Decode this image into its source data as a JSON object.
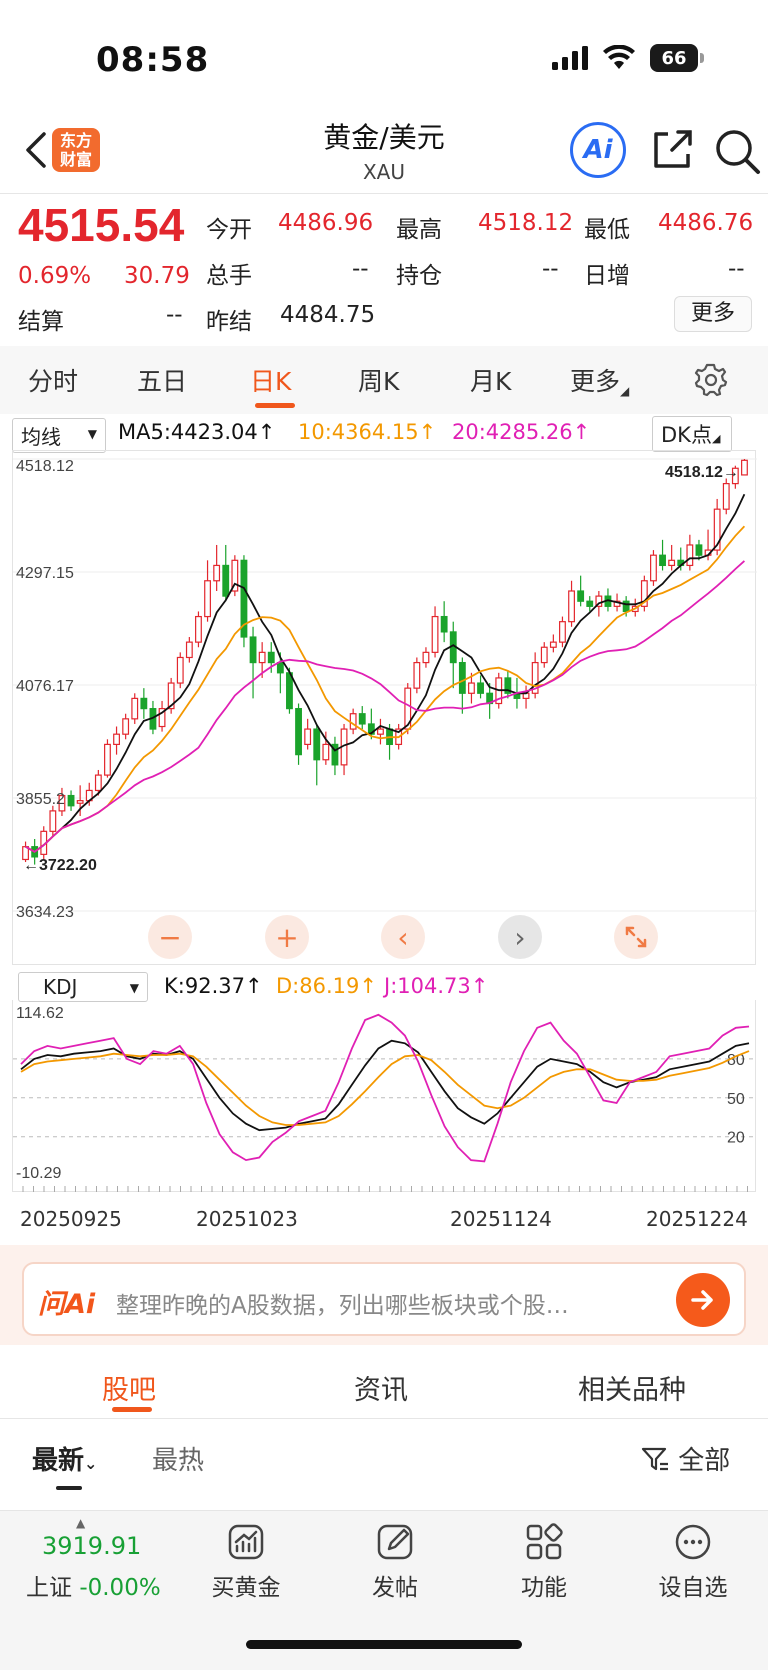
{
  "status": {
    "time": "08:58",
    "battery": "66"
  },
  "header": {
    "logo_line1": "东方",
    "logo_line2": "财富",
    "title": "黄金/美元",
    "subtitle": "XAU",
    "ai_label": "Ai"
  },
  "quote": {
    "price": "4515.54",
    "change_pct": "0.69%",
    "change": "30.79",
    "open_label": "今开",
    "open": "4486.96",
    "high_label": "最高",
    "high": "4518.12",
    "low_label": "最低",
    "low": "4486.76",
    "volume_label": "总手",
    "volume": "--",
    "position_label": "持仓",
    "position": "--",
    "daily_inc_label": "日增",
    "daily_inc": "--",
    "settle_label": "结算",
    "settle": "--",
    "prev_settle_label": "昨结",
    "prev_settle": "4484.75",
    "more_label": "更多"
  },
  "tabs": [
    "分时",
    "五日",
    "日K",
    "周K",
    "月K",
    "更多"
  ],
  "indicators": {
    "ma_select": "均线",
    "ma5": "MA5:4423.04↑",
    "ma10": "10:4364.15↑",
    "ma20": "20:4285.26↑",
    "dk_label": "DK点",
    "kdj_select": "KDJ",
    "k": "K:92.37↑",
    "d": "D:86.19↑",
    "j": "J:104.73↑"
  },
  "chart_data": [
    {
      "type": "candlestick",
      "title": "",
      "ylim": [
        3634.23,
        4518.12
      ],
      "y_ticks": [
        "4518.12",
        "4297.15",
        "4076.17",
        "3855.2",
        "3634.23"
      ],
      "max_label": "4518.12",
      "min_label": "3722.20",
      "x_ticks": [
        "20250925",
        "20251023",
        "20251124",
        "20251224"
      ],
      "series": [
        {
          "name": "MA5",
          "color": "#111111"
        },
        {
          "name": "10",
          "color": "#f39800"
        },
        {
          "name": "20",
          "color": "#e020b4"
        }
      ],
      "candles": [
        [
          3735,
          3760,
          3730,
          3770
        ],
        [
          3760,
          3740,
          3725,
          3775
        ],
        [
          3745,
          3790,
          3735,
          3800
        ],
        [
          3790,
          3830,
          3780,
          3840
        ],
        [
          3830,
          3860,
          3820,
          3875
        ],
        [
          3860,
          3840,
          3830,
          3870
        ],
        [
          3845,
          3850,
          3820,
          3880
        ],
        [
          3850,
          3870,
          3840,
          3885
        ],
        [
          3870,
          3900,
          3860,
          3910
        ],
        [
          3900,
          3960,
          3895,
          3970
        ],
        [
          3960,
          3980,
          3940,
          3995
        ],
        [
          3980,
          4010,
          3970,
          4020
        ],
        [
          4010,
          4050,
          4000,
          4060
        ],
        [
          4050,
          4030,
          4010,
          4070
        ],
        [
          4030,
          3990,
          3980,
          4045
        ],
        [
          3995,
          4030,
          3985,
          4045
        ],
        [
          4030,
          4080,
          4020,
          4090
        ],
        [
          4080,
          4130,
          4070,
          4140
        ],
        [
          4130,
          4160,
          4120,
          4170
        ],
        [
          4160,
          4210,
          4150,
          4220
        ],
        [
          4210,
          4280,
          4200,
          4320
        ],
        [
          4280,
          4310,
          4260,
          4350
        ],
        [
          4310,
          4250,
          4240,
          4350
        ],
        [
          4260,
          4320,
          4250,
          4330
        ],
        [
          4320,
          4170,
          4150,
          4330
        ],
        [
          4170,
          4120,
          4050,
          4190
        ],
        [
          4120,
          4140,
          4090,
          4160
        ],
        [
          4140,
          4120,
          4100,
          4160
        ],
        [
          4120,
          4100,
          4060,
          4140
        ],
        [
          4100,
          4030,
          4020,
          4110
        ],
        [
          4030,
          3940,
          3920,
          4040
        ],
        [
          3960,
          3990,
          3950,
          4010
        ],
        [
          3990,
          3930,
          3880,
          4000
        ],
        [
          3930,
          3960,
          3920,
          3985
        ],
        [
          3960,
          3920,
          3900,
          3975
        ],
        [
          3920,
          3990,
          3900,
          4000
        ],
        [
          3990,
          4020,
          3980,
          4030
        ],
        [
          4020,
          4000,
          3990,
          4035
        ],
        [
          4000,
          3980,
          3970,
          4030
        ],
        [
          3980,
          3990,
          3960,
          4010
        ],
        [
          3990,
          3960,
          3930,
          4000
        ],
        [
          3960,
          3990,
          3950,
          4000
        ],
        [
          3990,
          4070,
          3980,
          4080
        ],
        [
          4070,
          4120,
          4060,
          4130
        ],
        [
          4120,
          4140,
          4110,
          4150
        ],
        [
          4140,
          4210,
          4130,
          4230
        ],
        [
          4210,
          4180,
          4160,
          4240
        ],
        [
          4180,
          4120,
          4070,
          4200
        ],
        [
          4120,
          4060,
          4020,
          4130
        ],
        [
          4060,
          4080,
          4040,
          4100
        ],
        [
          4080,
          4060,
          4050,
          4095
        ],
        [
          4060,
          4040,
          4010,
          4080
        ],
        [
          4040,
          4090,
          4030,
          4100
        ],
        [
          4090,
          4060,
          4050,
          4105
        ],
        [
          4060,
          4050,
          4030,
          4090
        ],
        [
          4050,
          4060,
          4030,
          4075
        ],
        [
          4060,
          4120,
          4050,
          4140
        ],
        [
          4120,
          4150,
          4110,
          4160
        ],
        [
          4150,
          4160,
          4140,
          4175
        ],
        [
          4160,
          4200,
          4150,
          4210
        ],
        [
          4200,
          4260,
          4190,
          4280
        ],
        [
          4260,
          4240,
          4230,
          4290
        ],
        [
          4240,
          4230,
          4220,
          4250
        ],
        [
          4230,
          4250,
          4210,
          4260
        ],
        [
          4250,
          4230,
          4220,
          4265
        ],
        [
          4230,
          4240,
          4220,
          4255
        ],
        [
          4240,
          4220,
          4210,
          4250
        ],
        [
          4220,
          4230,
          4210,
          4245
        ],
        [
          4230,
          4280,
          4220,
          4290
        ],
        [
          4280,
          4330,
          4270,
          4340
        ],
        [
          4330,
          4310,
          4300,
          4360
        ],
        [
          4310,
          4320,
          4300,
          4350
        ],
        [
          4320,
          4310,
          4300,
          4345
        ],
        [
          4310,
          4350,
          4300,
          4370
        ],
        [
          4350,
          4330,
          4320,
          4360
        ],
        [
          4330,
          4340,
          4320,
          4380
        ],
        [
          4340,
          4420,
          4330,
          4440
        ],
        [
          4420,
          4470,
          4410,
          4480
        ],
        [
          4470,
          4500,
          4460,
          4505
        ],
        [
          4486.96,
          4515.54,
          4486.76,
          4518.12
        ]
      ]
    },
    {
      "type": "line",
      "title": "KDJ",
      "ylim": [
        -10.29,
        114.62
      ],
      "y_ticks": [
        "114.62",
        "-10.29"
      ],
      "ref_lines": [
        80,
        50,
        20
      ],
      "series": [
        {
          "name": "K",
          "color": "#111111",
          "values": [
            72,
            80,
            83,
            82,
            84,
            85,
            86,
            88,
            82,
            80,
            84,
            83,
            86,
            80,
            65,
            50,
            38,
            30,
            25,
            26,
            27,
            30,
            32,
            34,
            45,
            60,
            75,
            88,
            94,
            92,
            85,
            70,
            55,
            42,
            35,
            30,
            38,
            50,
            62,
            74,
            80,
            78,
            76,
            70,
            62,
            58,
            62,
            64,
            66,
            72,
            74,
            76,
            78,
            84,
            90,
            92
          ]
        },
        {
          "name": "D",
          "color": "#f39800",
          "values": [
            70,
            76,
            78,
            79,
            80,
            81,
            82,
            84,
            83,
            82,
            83,
            83,
            84,
            82,
            74,
            64,
            54,
            44,
            36,
            31,
            29,
            29,
            30,
            31,
            36,
            45,
            55,
            66,
            76,
            82,
            83,
            79,
            70,
            60,
            52,
            44,
            42,
            44,
            50,
            58,
            66,
            70,
            72,
            72,
            68,
            64,
            63,
            63,
            64,
            67,
            69,
            71,
            73,
            77,
            82,
            86
          ]
        },
        {
          "name": "J",
          "color": "#e020b4",
          "values": [
            76,
            86,
            90,
            88,
            90,
            92,
            94,
            96,
            80,
            76,
            86,
            84,
            90,
            76,
            46,
            22,
            8,
            2,
            4,
            16,
            23,
            32,
            36,
            40,
            62,
            88,
            110,
            114,
            108,
            98,
            78,
            52,
            28,
            12,
            2,
            1,
            30,
            62,
            86,
            104,
            108,
            94,
            84,
            66,
            48,
            46,
            62,
            66,
            70,
            82,
            84,
            86,
            88,
            98,
            104,
            105
          ]
        }
      ]
    }
  ],
  "ai_input": {
    "brand": "问Ai",
    "placeholder": "整理昨晚的A股数据，列出哪些板块或个股…"
  },
  "subtabs": [
    "股吧",
    "资讯",
    "相关品种"
  ],
  "sort": {
    "latest": "最新",
    "hot": "最热",
    "filter": "全部"
  },
  "bottom_nav": {
    "index_value": "3919.91",
    "index_name": "上证",
    "index_change": "-0.00%",
    "items": [
      "买黄金",
      "发帖",
      "功能",
      "设自选"
    ]
  }
}
